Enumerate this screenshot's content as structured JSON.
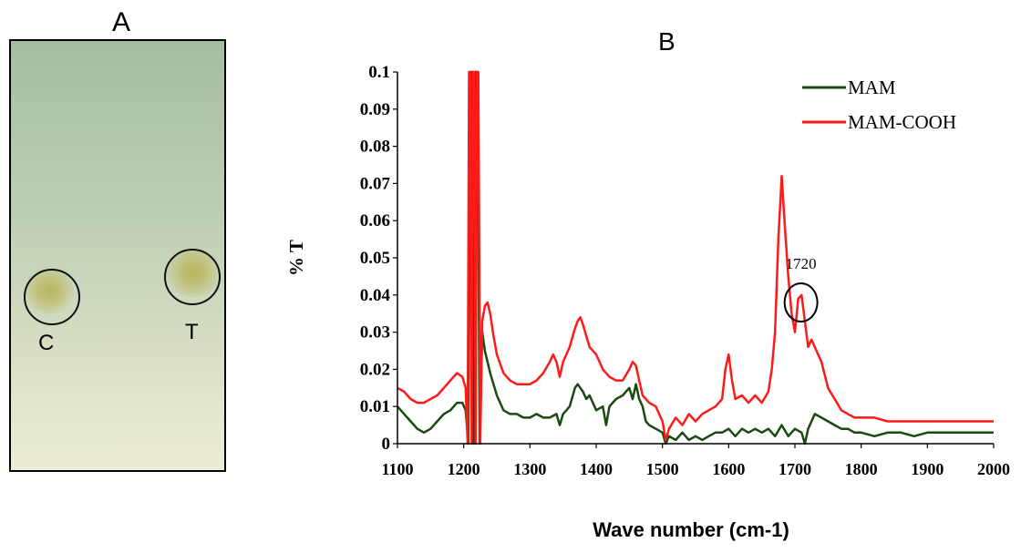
{
  "panel_a": {
    "label": "A",
    "spots": [
      {
        "label": "C"
      },
      {
        "label": "T"
      }
    ]
  },
  "panel_b": {
    "label": "B"
  },
  "chart_data": {
    "type": "line",
    "title": "",
    "xlabel": "Wave number (cm-1)",
    "ylabel": "% T",
    "xlim": [
      1100,
      2000
    ],
    "ylim": [
      0,
      0.1
    ],
    "x_ticks": [
      1100,
      1200,
      1300,
      1400,
      1500,
      1600,
      1700,
      1800,
      1900,
      2000
    ],
    "y_ticks": [
      0,
      0.01,
      0.02,
      0.03,
      0.04,
      0.05,
      0.06,
      0.07,
      0.08,
      0.09,
      0.1
    ],
    "y_tick_labels": [
      "0",
      "0.01",
      "0.02",
      "0.03",
      "0.04",
      "0.05",
      "0.06",
      "0.07",
      "0.08",
      "0.09",
      "0.1"
    ],
    "legend_position": "top-right",
    "series": [
      {
        "name": "MAM",
        "color": "#1a4a12",
        "x": [
          1100,
          1110,
          1120,
          1130,
          1140,
          1150,
          1160,
          1170,
          1180,
          1190,
          1198,
          1203,
          1207,
          1209,
          1212,
          1215,
          1218,
          1221,
          1224,
          1228,
          1232,
          1236,
          1240,
          1245,
          1250,
          1260,
          1270,
          1280,
          1290,
          1300,
          1310,
          1320,
          1330,
          1340,
          1345,
          1350,
          1360,
          1368,
          1372,
          1376,
          1380,
          1385,
          1390,
          1400,
          1410,
          1415,
          1420,
          1430,
          1440,
          1450,
          1455,
          1460,
          1465,
          1470,
          1475,
          1480,
          1490,
          1500,
          1505,
          1510,
          1520,
          1530,
          1540,
          1550,
          1560,
          1570,
          1580,
          1590,
          1600,
          1610,
          1620,
          1630,
          1640,
          1650,
          1660,
          1670,
          1680,
          1690,
          1700,
          1710,
          1715,
          1720,
          1725,
          1730,
          1740,
          1750,
          1760,
          1770,
          1780,
          1790,
          1800,
          1820,
          1840,
          1860,
          1880,
          1900,
          1920,
          1940,
          1960,
          1980,
          2000
        ],
        "y": [
          0.01,
          0.008,
          0.006,
          0.004,
          0.003,
          0.004,
          0.006,
          0.008,
          0.009,
          0.011,
          0.011,
          0.009,
          0.0,
          0.1,
          0.1,
          0.0,
          0.1,
          0.1,
          0.0,
          0.03,
          0.025,
          0.022,
          0.019,
          0.016,
          0.013,
          0.009,
          0.008,
          0.008,
          0.007,
          0.007,
          0.008,
          0.007,
          0.007,
          0.008,
          0.005,
          0.008,
          0.01,
          0.015,
          0.016,
          0.015,
          0.014,
          0.012,
          0.013,
          0.009,
          0.01,
          0.005,
          0.01,
          0.012,
          0.013,
          0.015,
          0.012,
          0.016,
          0.012,
          0.01,
          0.006,
          0.005,
          0.004,
          0.003,
          0.0,
          0.002,
          0.001,
          0.003,
          0.001,
          0.002,
          0.001,
          0.002,
          0.003,
          0.003,
          0.004,
          0.002,
          0.004,
          0.003,
          0.004,
          0.003,
          0.004,
          0.002,
          0.005,
          0.002,
          0.004,
          0.003,
          0.0,
          0.004,
          0.006,
          0.008,
          0.007,
          0.006,
          0.005,
          0.004,
          0.004,
          0.003,
          0.003,
          0.002,
          0.003,
          0.003,
          0.002,
          0.003,
          0.003,
          0.003,
          0.003,
          0.003,
          0.003
        ]
      },
      {
        "name": "MAM-COOH",
        "color": "#ff1a1a",
        "x": [
          1100,
          1110,
          1120,
          1130,
          1140,
          1150,
          1160,
          1170,
          1180,
          1190,
          1198,
          1203,
          1206,
          1208,
          1210,
          1212,
          1214,
          1216,
          1218,
          1220,
          1222,
          1225,
          1228,
          1232,
          1236,
          1240,
          1245,
          1250,
          1260,
          1270,
          1280,
          1290,
          1300,
          1310,
          1320,
          1330,
          1335,
          1340,
          1345,
          1350,
          1360,
          1368,
          1372,
          1376,
          1380,
          1385,
          1390,
          1400,
          1410,
          1420,
          1430,
          1440,
          1450,
          1455,
          1460,
          1465,
          1470,
          1475,
          1480,
          1490,
          1500,
          1505,
          1510,
          1520,
          1530,
          1540,
          1550,
          1560,
          1570,
          1580,
          1590,
          1595,
          1600,
          1605,
          1610,
          1620,
          1630,
          1640,
          1650,
          1660,
          1665,
          1670,
          1675,
          1680,
          1685,
          1690,
          1695,
          1700,
          1705,
          1710,
          1715,
          1720,
          1725,
          1730,
          1740,
          1750,
          1760,
          1770,
          1780,
          1790,
          1800,
          1820,
          1840,
          1860,
          1880,
          1900,
          1920,
          1940,
          1960,
          1980,
          2000
        ],
        "y": [
          0.015,
          0.014,
          0.012,
          0.011,
          0.011,
          0.012,
          0.013,
          0.015,
          0.017,
          0.019,
          0.018,
          0.015,
          0.0,
          0.1,
          0.1,
          0.0,
          0.1,
          0.1,
          0.0,
          0.1,
          0.1,
          0.0,
          0.033,
          0.037,
          0.038,
          0.035,
          0.029,
          0.024,
          0.019,
          0.017,
          0.016,
          0.016,
          0.016,
          0.017,
          0.019,
          0.022,
          0.024,
          0.022,
          0.018,
          0.022,
          0.026,
          0.031,
          0.033,
          0.034,
          0.032,
          0.029,
          0.026,
          0.024,
          0.02,
          0.018,
          0.017,
          0.017,
          0.02,
          0.022,
          0.021,
          0.017,
          0.013,
          0.012,
          0.011,
          0.01,
          0.006,
          0.001,
          0.004,
          0.007,
          0.005,
          0.008,
          0.006,
          0.008,
          0.009,
          0.01,
          0.012,
          0.02,
          0.024,
          0.017,
          0.012,
          0.013,
          0.011,
          0.013,
          0.011,
          0.014,
          0.02,
          0.03,
          0.055,
          0.072,
          0.058,
          0.045,
          0.035,
          0.03,
          0.039,
          0.04,
          0.033,
          0.026,
          0.028,
          0.026,
          0.022,
          0.015,
          0.012,
          0.009,
          0.008,
          0.007,
          0.007,
          0.007,
          0.006,
          0.006,
          0.006,
          0.006,
          0.006,
          0.006,
          0.006,
          0.006,
          0.006
        ]
      }
    ],
    "annotations": [
      {
        "text": "1720",
        "x": 1705,
        "y": 0.038
      }
    ]
  }
}
